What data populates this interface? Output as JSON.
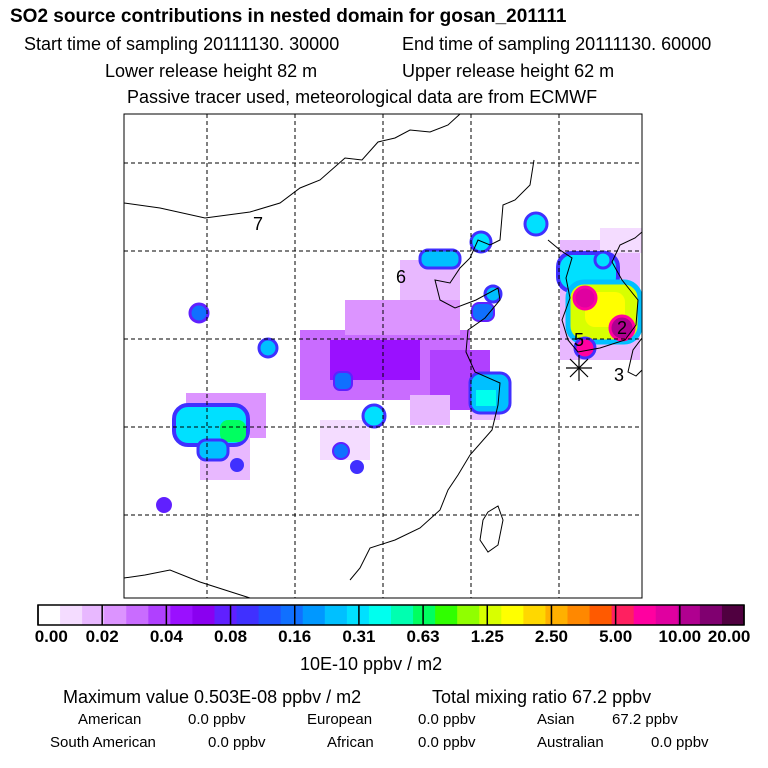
{
  "header": {
    "title": "SO2 source contributions in nested domain for gosan_201111",
    "start_label": "Start time of sampling 20111130. 30000",
    "end_label": "End time of sampling 20111130. 60000",
    "lower_label": "Lower release height   82 m",
    "upper_label": "Upper release height   62 m",
    "tracer_note": "Passive tracer used, meteorological data are from ECMWF"
  },
  "chart_data": {
    "type": "heatmap",
    "title": "SO2 source contributions in nested domain for gosan_201111",
    "colorbar": {
      "ticks": [
        "0.00",
        "0.02",
        "0.04",
        "0.08",
        "0.16",
        "0.31",
        "0.63",
        "1.25",
        "2.50",
        "5.00",
        "10.00",
        "20.00"
      ],
      "units": "10E-10 ppbv / m2",
      "colors": [
        "#ffffff",
        "#f4dcff",
        "#e8b8ff",
        "#dc94ff",
        "#c96cff",
        "#b040ff",
        "#9a10ff",
        "#8a00f0",
        "#6020ff",
        "#4030ff",
        "#2050ff",
        "#1070ff",
        "#0098ff",
        "#00c0ff",
        "#00e0ff",
        "#00ffee",
        "#00ffb0",
        "#00ff60",
        "#30ff00",
        "#90ff00",
        "#d8ff00",
        "#ffff00",
        "#ffd800",
        "#ffb000",
        "#ff8800",
        "#ff5a00",
        "#ff2060",
        "#ff00a0",
        "#e000a0",
        "#b00090",
        "#800070",
        "#500040"
      ]
    },
    "region_labels": [
      "7",
      "6",
      "5",
      "2",
      "3"
    ],
    "receptor_marker": "asterisk"
  },
  "stats": {
    "max_value": "Maximum value  0.503E-08 ppbv / m2",
    "total_mixing": "Total mixing ratio      67.2 ppbv",
    "regions": [
      {
        "name": "American",
        "value": "0.0 ppbv"
      },
      {
        "name": "European",
        "value": "0.0 ppbv"
      },
      {
        "name": "Asian",
        "value": "67.2 ppbv"
      },
      {
        "name": "South American",
        "value": "0.0 ppbv"
      },
      {
        "name": "African",
        "value": "0.0 ppbv"
      },
      {
        "name": "Australian",
        "value": "0.0 ppbv"
      }
    ]
  }
}
